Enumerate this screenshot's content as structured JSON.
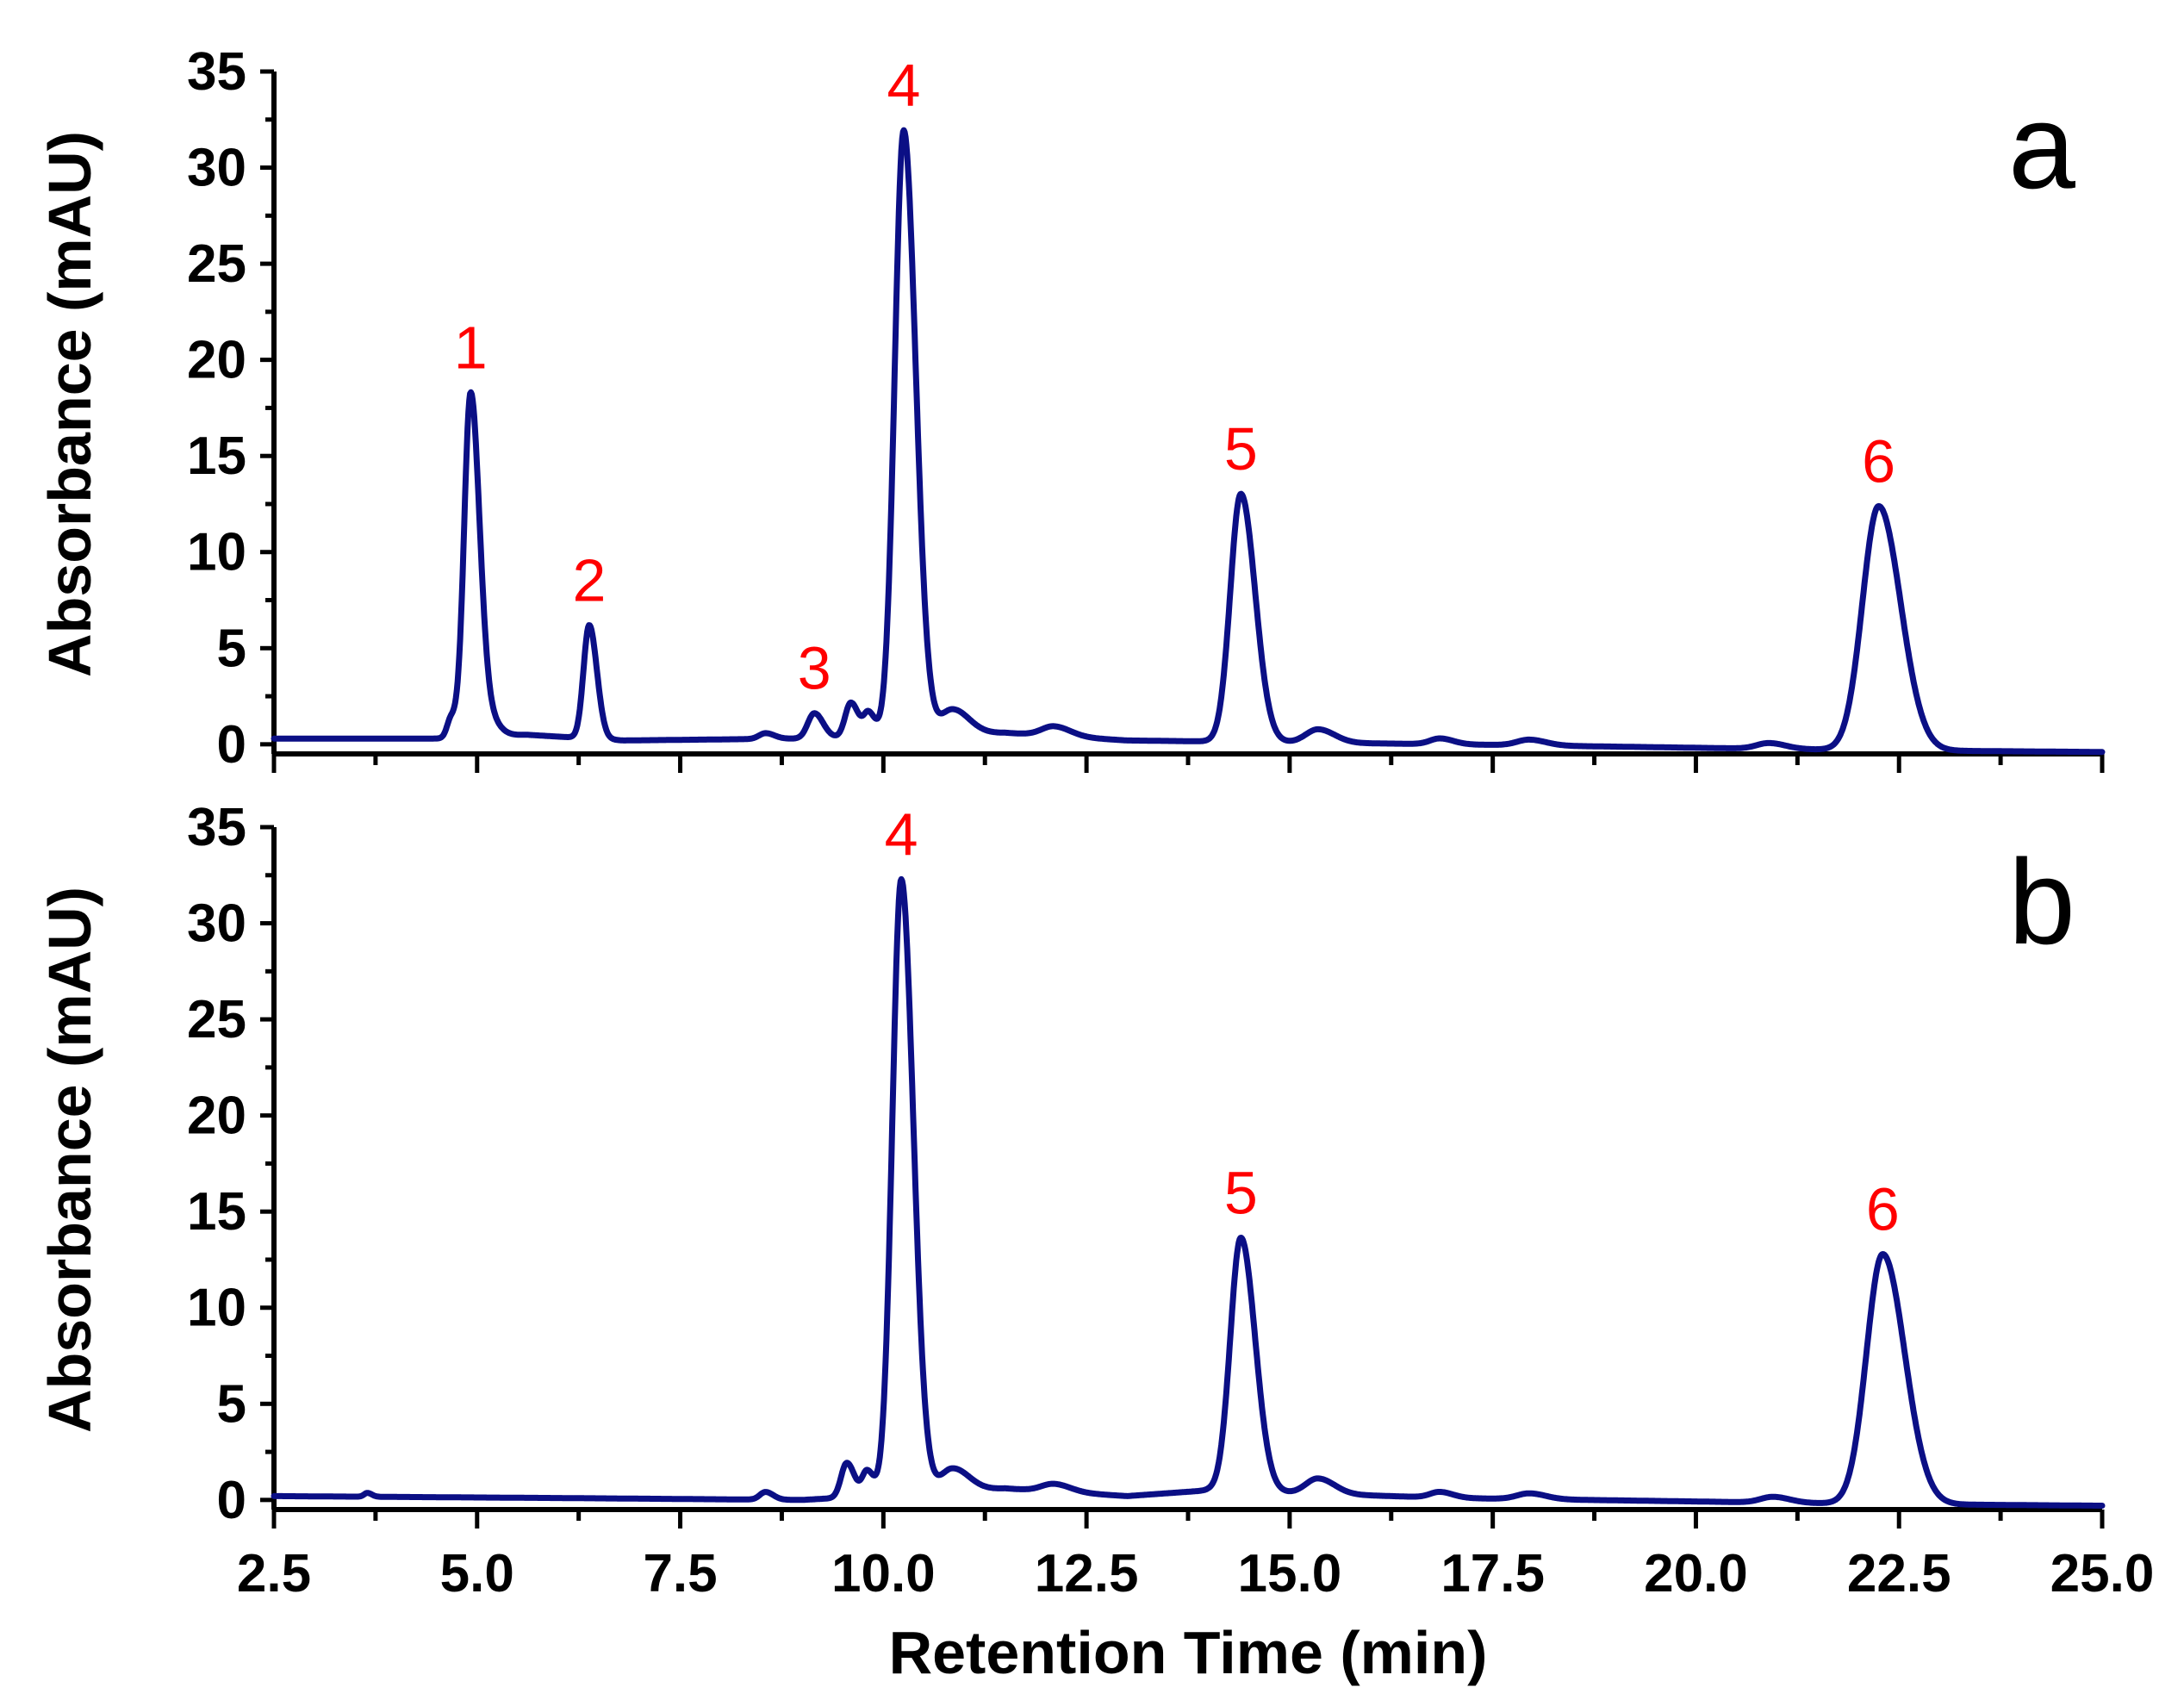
{
  "chart_data": [
    {
      "type": "line",
      "panel_label": "a",
      "ylabel": "Absorbance (mAU)",
      "xlabel": "",
      "xlim": [
        2.5,
        25.0
      ],
      "ylim": [
        -0.5,
        35
      ],
      "yticks": [
        "0",
        "5",
        "10",
        "15",
        "20",
        "25",
        "30",
        "35"
      ],
      "xticks": [],
      "baseline": [
        [
          2.5,
          0.3
        ],
        [
          4.5,
          0.3
        ],
        [
          5.6,
          0.5
        ],
        [
          6.8,
          0.2
        ],
        [
          9.0,
          0.3
        ],
        [
          11.5,
          0.6
        ],
        [
          13.0,
          0.2
        ],
        [
          17.0,
          0.0
        ],
        [
          22.0,
          -0.3
        ],
        [
          25.0,
          -0.4
        ]
      ],
      "peaks": [
        {
          "label": "",
          "rt": 4.68,
          "height": 1.0,
          "width": 0.05
        },
        {
          "label": "1",
          "rt": 4.92,
          "height": 17.8,
          "width": 0.08
        },
        {
          "label": "",
          "rt": 5.12,
          "height": 1.0,
          "width": 0.1
        },
        {
          "label": "2",
          "rt": 6.38,
          "height": 5.9,
          "width": 0.07
        },
        {
          "label": "",
          "rt": 8.55,
          "height": 0.3,
          "width": 0.08
        },
        {
          "label": "3",
          "rt": 9.15,
          "height": 1.3,
          "width": 0.08
        },
        {
          "label": "",
          "rt": 9.6,
          "height": 1.8,
          "width": 0.07
        },
        {
          "label": "",
          "rt": 9.82,
          "height": 1.2,
          "width": 0.06
        },
        {
          "label": "4",
          "rt": 10.25,
          "height": 31.5,
          "width": 0.11
        },
        {
          "label": "",
          "rt": 10.85,
          "height": 1.3,
          "width": 0.15
        },
        {
          "label": "",
          "rt": 12.1,
          "height": 0.5,
          "width": 0.15
        },
        {
          "label": "5",
          "rt": 14.4,
          "height": 12.9,
          "width": 0.13
        },
        {
          "label": "",
          "rt": 15.35,
          "height": 0.7,
          "width": 0.15
        },
        {
          "label": "",
          "rt": 16.85,
          "height": 0.3,
          "width": 0.12
        },
        {
          "label": "",
          "rt": 17.95,
          "height": 0.3,
          "width": 0.15
        },
        {
          "label": "",
          "rt": 20.9,
          "height": 0.3,
          "width": 0.15
        },
        {
          "label": "6",
          "rt": 22.25,
          "height": 12.7,
          "width": 0.2
        }
      ],
      "color": "#0b0f85"
    },
    {
      "type": "line",
      "panel_label": "b",
      "ylabel": "Absorbance (mAU)",
      "xlabel": "Retention Time (min)",
      "xlim": [
        2.5,
        25.0
      ],
      "ylim": [
        -0.5,
        35
      ],
      "yticks": [
        "0",
        "5",
        "10",
        "15",
        "20",
        "25",
        "30",
        "35"
      ],
      "xticks": [
        "2.5",
        "5.0",
        "7.5",
        "10.0",
        "12.5",
        "15.0",
        "17.5",
        "20.0",
        "22.5",
        "25.0"
      ],
      "baseline": [
        [
          2.5,
          0.2
        ],
        [
          6.0,
          0.1
        ],
        [
          9.0,
          0.0
        ],
        [
          11.5,
          0.6
        ],
        [
          13.0,
          0.2
        ],
        [
          14.0,
          0.5
        ],
        [
          17.0,
          0.1
        ],
        [
          22.0,
          -0.2
        ],
        [
          25.0,
          -0.3
        ]
      ],
      "peaks": [
        {
          "label": "",
          "rt": 3.65,
          "height": 0.2,
          "width": 0.04
        },
        {
          "label": "",
          "rt": 8.55,
          "height": 0.4,
          "width": 0.07
        },
        {
          "label": "",
          "rt": 9.55,
          "height": 1.8,
          "width": 0.07
        },
        {
          "label": "",
          "rt": 9.8,
          "height": 1.3,
          "width": 0.06
        },
        {
          "label": "4",
          "rt": 10.22,
          "height": 32.0,
          "width": 0.11
        },
        {
          "label": "",
          "rt": 10.85,
          "height": 1.2,
          "width": 0.15
        },
        {
          "label": "",
          "rt": 12.1,
          "height": 0.4,
          "width": 0.15
        },
        {
          "label": "5",
          "rt": 14.4,
          "height": 13.2,
          "width": 0.13
        },
        {
          "label": "",
          "rt": 15.35,
          "height": 0.8,
          "width": 0.15
        },
        {
          "label": "",
          "rt": 16.85,
          "height": 0.3,
          "width": 0.12
        },
        {
          "label": "",
          "rt": 17.95,
          "height": 0.3,
          "width": 0.15
        },
        {
          "label": "",
          "rt": 20.95,
          "height": 0.3,
          "width": 0.15
        },
        {
          "label": "6",
          "rt": 22.3,
          "height": 13.0,
          "width": 0.2
        }
      ],
      "color": "#0b0f85"
    }
  ]
}
